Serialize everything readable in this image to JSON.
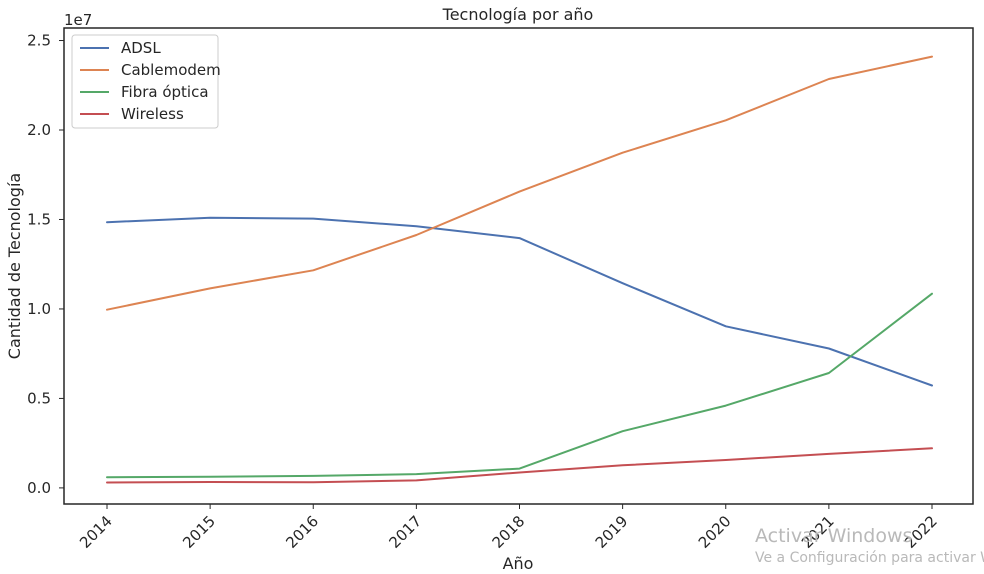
{
  "chart_data": {
    "type": "line",
    "title": "Tecnología por año",
    "xlabel": "Año",
    "ylabel": "Cantidad de Tecnología",
    "y_offset_label": "1e7",
    "x": [
      "2014",
      "2015",
      "2016",
      "2017",
      "2018",
      "2019",
      "2020",
      "2021",
      "2022"
    ],
    "ylim": [
      -900000,
      25700000
    ],
    "yticks": [
      0,
      5000000,
      10000000,
      15000000,
      20000000,
      25000000
    ],
    "ytick_labels": [
      "0.0",
      "0.5",
      "1.0",
      "1.5",
      "2.0",
      "2.5"
    ],
    "grid": false,
    "legend_position": "top-left",
    "series": [
      {
        "name": "ADSL",
        "color": "#4c72b0",
        "values": [
          14850000,
          15100000,
          15050000,
          14620000,
          13960000,
          11440000,
          9030000,
          7790000,
          5720000
        ]
      },
      {
        "name": "Cablemodem",
        "color": "#dd8452",
        "values": [
          9960000,
          11150000,
          12160000,
          14130000,
          16560000,
          18730000,
          20540000,
          22850000,
          24100000
        ]
      },
      {
        "name": "Fibra óptica",
        "color": "#55a868",
        "values": [
          600000,
          620000,
          670000,
          770000,
          1080000,
          3170000,
          4600000,
          6420000,
          10850000
        ]
      },
      {
        "name": "Wireless",
        "color": "#c44e52",
        "values": [
          300000,
          330000,
          320000,
          420000,
          860000,
          1260000,
          1560000,
          1900000,
          2210000
        ]
      }
    ]
  },
  "watermark": {
    "line1": "Activar Windows",
    "line2": "Ve a Configuración para activar Windows."
  }
}
